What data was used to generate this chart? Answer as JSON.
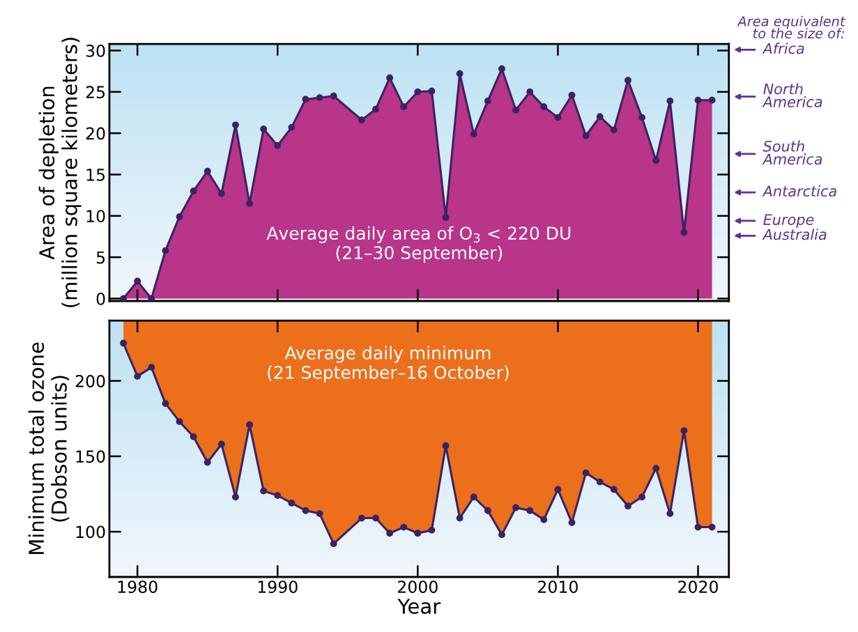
{
  "chart_data": [
    {
      "type": "area",
      "ylabel": "Area of depletion\n(million square kilometers)",
      "x": [
        1979,
        1980,
        1981,
        1982,
        1983,
        1984,
        1985,
        1986,
        1987,
        1988,
        1989,
        1990,
        1991,
        1992,
        1993,
        1994,
        1996,
        1997,
        1998,
        1999,
        2000,
        2001,
        2002,
        2003,
        2004,
        2005,
        2006,
        2007,
        2008,
        2009,
        2010,
        2011,
        2012,
        2013,
        2014,
        2015,
        2016,
        2017,
        2018,
        2019,
        2020,
        2021
      ],
      "series": [
        {
          "color": "#3a2263",
          "values": [
            0,
            2.1,
            0,
            5.8,
            9.9,
            13.0,
            15.4,
            12.7,
            21.0,
            11.5,
            20.5,
            18.5,
            20.7,
            24.1,
            24.3,
            24.5,
            21.6,
            22.9,
            26.7,
            23.2,
            25.0,
            25.1,
            9.8,
            27.2,
            19.9,
            23.9,
            27.8,
            22.8,
            25.0,
            23.2,
            21.9,
            24.6,
            19.7,
            22.0,
            20.4,
            26.4,
            21.9,
            16.7,
            23.9,
            8.0,
            24.0,
            24.0
          ]
        }
      ],
      "xlim": [
        1978,
        2022.2
      ],
      "ylim": [
        -0.3,
        30.8
      ],
      "xticks": [
        1980,
        1990,
        2000,
        2010,
        2020
      ],
      "yticks": [
        0,
        5,
        10,
        15,
        20,
        25,
        30
      ],
      "tick_labels": "y",
      "marker": "circle",
      "line_style": "solid",
      "annotations": [
        "Average daily area of O$_{3}$ < 220 DU\n(21–30 September)",
        "Area equivalent\nto the size of:",
        "Africa",
        "North\nAmerica",
        "South\nAmerica",
        "Antarctica",
        "Europe",
        "Australia"
      ]
    },
    {
      "type": "line",
      "ylabel": "Minimum total ozone\n(Dobson units)",
      "xlabel": "Year",
      "x": [
        1979,
        1980,
        1981,
        1982,
        1983,
        1984,
        1985,
        1986,
        1987,
        1988,
        1989,
        1990,
        1991,
        1992,
        1993,
        1994,
        1996,
        1997,
        1998,
        1999,
        2000,
        2001,
        2002,
        2003,
        2004,
        2005,
        2006,
        2007,
        2008,
        2009,
        2010,
        2011,
        2012,
        2013,
        2014,
        2015,
        2016,
        2017,
        2018,
        2019,
        2020,
        2021
      ],
      "series": [
        {
          "color": "#3a2263",
          "values": [
            225,
            203,
            209,
            185,
            173,
            163,
            146,
            158,
            123,
            171,
            127,
            124,
            119,
            114,
            112,
            92,
            109,
            109,
            99,
            103,
            99,
            101,
            157,
            109,
            123,
            114,
            98,
            116,
            114,
            108,
            128,
            106,
            139,
            133,
            128,
            117,
            123,
            142,
            112,
            167,
            103,
            103
          ],
          "lower": [
            225,
            203,
            209,
            185,
            173,
            163,
            146,
            158,
            123,
            171,
            127,
            124,
            119,
            114,
            112,
            92,
            109,
            109,
            99,
            103,
            99,
            101,
            157,
            109,
            123,
            114,
            98,
            116,
            114,
            108,
            128,
            106,
            139,
            133,
            128,
            117,
            123,
            142,
            112,
            167,
            103,
            103
          ],
          "upper": [
            240,
            240,
            240,
            240,
            240,
            240,
            240,
            240,
            240,
            240,
            240,
            240,
            240,
            240,
            240,
            240,
            240,
            240,
            240,
            240,
            240,
            240,
            240,
            240,
            240,
            240,
            240,
            240,
            240,
            240,
            240,
            240,
            240,
            240,
            240,
            240,
            240,
            240,
            240,
            240,
            240,
            240
          ]
        }
      ],
      "xlim": [
        1978,
        2022.2
      ],
      "ylim": [
        70,
        240
      ],
      "xticks": [
        1980,
        1990,
        2000,
        2010,
        2020
      ],
      "yticks": [
        100,
        150,
        200
      ],
      "marker": "circle",
      "line_style": "solid",
      "annotations": [
        "Average daily minimum\n(21 September–16 October)"
      ]
    }
  ]
}
